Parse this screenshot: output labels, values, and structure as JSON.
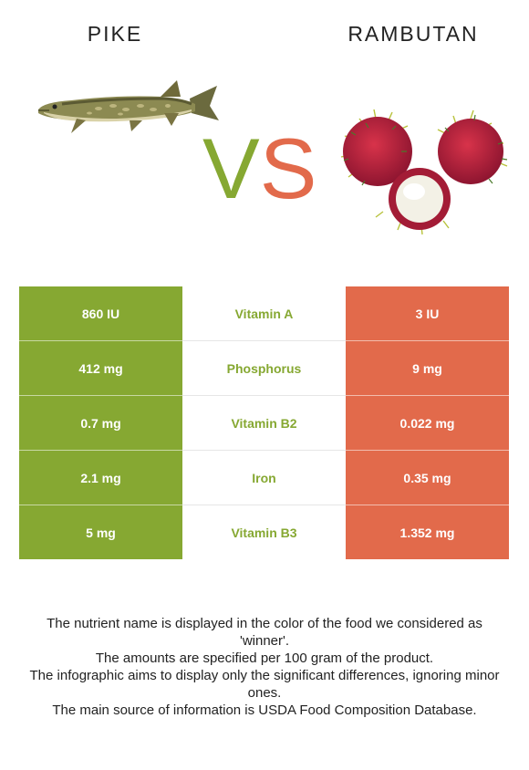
{
  "header": {
    "left_food": "PIKE",
    "right_food": "RAMBUTAN",
    "vs_v": "V",
    "vs_s": "S"
  },
  "colors": {
    "winner_left": "#86a832",
    "winner_right": "#e26a4b"
  },
  "rows": [
    {
      "left": "860 IU",
      "nutrient": "Vitamin A",
      "right": "3 IU"
    },
    {
      "left": "412 mg",
      "nutrient": "Phosphorus",
      "right": "9 mg"
    },
    {
      "left": "0.7 mg",
      "nutrient": "Vitamin B2",
      "right": "0.022 mg"
    },
    {
      "left": "2.1 mg",
      "nutrient": "Iron",
      "right": "0.35 mg"
    },
    {
      "left": "5 mg",
      "nutrient": "Vitamin B3",
      "right": "1.352 mg"
    }
  ],
  "footnote": [
    "The nutrient name is displayed in the color of the food we considered as 'winner'.",
    "The amounts are specified per 100 gram of the product.",
    "The infographic aims to display only the significant differences, ignoring minor ones.",
    "The main source of information is USDA Food Composition Database."
  ]
}
